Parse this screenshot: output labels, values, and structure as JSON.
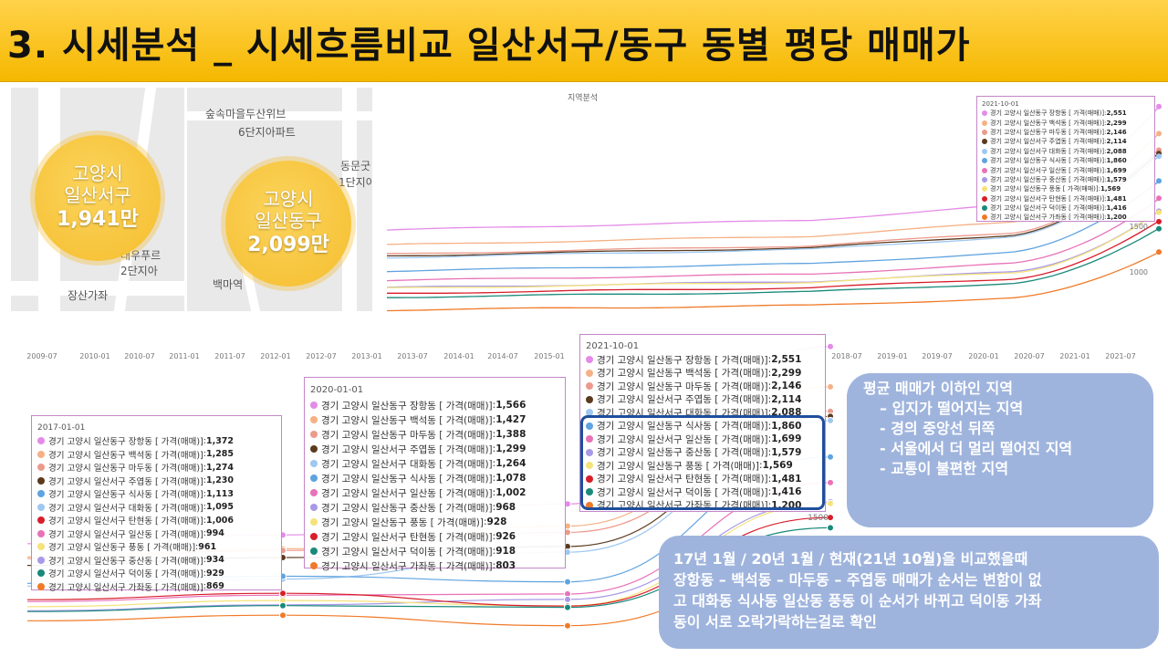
{
  "title": "3. 시세분석 _ 시세흐름비교 일산서구/동구 동별 평당 매매가",
  "maps": {
    "seo": {
      "name_line1": "고양시",
      "name_line2": "일산서구",
      "price": "1,941만",
      "labels": [
        "대우푸르",
        "2단지아",
        "장산가좌"
      ]
    },
    "dong": {
      "name_line1": "고양시",
      "name_line2": "일산동구",
      "price": "2,099만",
      "labels": [
        "숲속마을두산위브",
        "6단지아파트",
        "동문굿",
        "1단지아",
        "백마역"
      ]
    }
  },
  "colors": {
    "janghang": "#e48be8",
    "baekseok": "#f5b185",
    "madu": "#ec9a8c",
    "juyeop": "#5b3a1e",
    "daehwa": "#9fc8f0",
    "siksa": "#5fa3e0",
    "ilsan": "#e872b8",
    "jungsan": "#a899e8",
    "pungdong": "#f5e27a",
    "tanhyeon": "#d81e2a",
    "deogi": "#1a8a7a",
    "gajwa": "#f07a28",
    "title_bar": "#f5b800",
    "note_bg": "#9fb4dd",
    "highlight": "#1f4e9c"
  },
  "chart_data": [
    {
      "id": "top_chart",
      "type": "line",
      "title": "지역분석",
      "y_tick_labels": [
        "1500",
        "1000"
      ],
      "legend_date": "2021-10-01",
      "series": [
        {
          "key": "janghang",
          "name": "경기 고양시 일산동구 장항동 [ 가격(매매)]",
          "value": 2551
        },
        {
          "key": "baekseok",
          "name": "경기 고양시 일산동구 백석동 [ 가격(매매)]",
          "value": 2299
        },
        {
          "key": "madu",
          "name": "경기 고양시 일산동구 마두동 [ 가격(매매)]",
          "value": 2146
        },
        {
          "key": "juyeop",
          "name": "경기 고양시 일산서구 주엽동 [ 가격(매매)]",
          "value": 2114
        },
        {
          "key": "daehwa",
          "name": "경기 고양시 일산서구 대화동 [ 가격(매매)]",
          "value": 2088
        },
        {
          "key": "siksa",
          "name": "경기 고양시 일산동구 식사동 [ 가격(매매)]",
          "value": 1860
        },
        {
          "key": "ilsan",
          "name": "경기 고양시 일산서구 일산동 [ 가격(매매)]",
          "value": 1699
        },
        {
          "key": "jungsan",
          "name": "경기 고양시 일산동구 중산동 [ 가격(매매)]",
          "value": 1579
        },
        {
          "key": "pungdong",
          "name": "경기 고양시 일산동구 풍동 [ 가격(매매)]",
          "value": 1569
        },
        {
          "key": "tanhyeon",
          "name": "경기 고양시 일산서구 탄현동 [ 가격(매매)]",
          "value": 1481
        },
        {
          "key": "deogi",
          "name": "경기 고양시 일산서구 덕이동 [ 가격(매매)]",
          "value": 1416
        },
        {
          "key": "gajwa",
          "name": "경기 고양시 일산서구 가좌동 [ 가격(매매)]",
          "value": 1200
        }
      ]
    },
    {
      "id": "bottom_chart",
      "type": "line",
      "x_tick_labels": [
        "2009-07",
        "2010-01",
        "2010-07",
        "2011-01",
        "2011-07",
        "2012-01",
        "2012-07",
        "2013-01",
        "2013-07",
        "2014-01",
        "2014-07",
        "2015-01",
        "2018-07",
        "2019-01",
        "2019-07",
        "2020-01",
        "2020-07",
        "2021-01",
        "2021-07"
      ],
      "y_tick_labels": [
        "1500"
      ],
      "snapshots": [
        {
          "date": "2017-01-01",
          "series": [
            {
              "key": "janghang",
              "name": "경기 고양시 일산동구 장항동 [ 가격(매매)]",
              "value": 1372
            },
            {
              "key": "baekseok",
              "name": "경기 고양시 일산동구 백석동 [ 가격(매매)]",
              "value": 1285
            },
            {
              "key": "madu",
              "name": "경기 고양시 일산동구 마두동 [ 가격(매매)]",
              "value": 1274
            },
            {
              "key": "juyeop",
              "name": "경기 고양시 일산서구 주엽동 [ 가격(매매)]",
              "value": 1230
            },
            {
              "key": "siksa",
              "name": "경기 고양시 일산동구 식사동 [ 가격(매매)]",
              "value": 1113
            },
            {
              "key": "daehwa",
              "name": "경기 고양시 일산서구 대화동 [ 가격(매매)]",
              "value": 1095
            },
            {
              "key": "tanhyeon",
              "name": "경기 고양시 일산서구 탄현동 [ 가격(매매)]",
              "value": 1006
            },
            {
              "key": "ilsan",
              "name": "경기 고양시 일산서구 일산동 [ 가격(매매)]",
              "value": 994
            },
            {
              "key": "pungdong",
              "name": "경기 고양시 일산동구 풍동 [ 가격(매매)]",
              "value": 961
            },
            {
              "key": "jungsan",
              "name": "경기 고양시 일산동구 중산동 [ 가격(매매)]",
              "value": 934
            },
            {
              "key": "deogi",
              "name": "경기 고양시 일산서구 덕이동 [ 가격(매매)]",
              "value": 929
            },
            {
              "key": "gajwa",
              "name": "경기 고양시 일산서구 가좌동 [ 가격(매매)]",
              "value": 869
            }
          ]
        },
        {
          "date": "2020-01-01",
          "series": [
            {
              "key": "janghang",
              "name": "경기 고양시 일산동구 장항동 [ 가격(매매)]",
              "value": 1566
            },
            {
              "key": "baekseok",
              "name": "경기 고양시 일산동구 백석동 [ 가격(매매)]",
              "value": 1427
            },
            {
              "key": "madu",
              "name": "경기 고양시 일산동구 마두동 [ 가격(매매)]",
              "value": 1388
            },
            {
              "key": "juyeop",
              "name": "경기 고양시 일산서구 주엽동 [ 가격(매매)]",
              "value": 1299
            },
            {
              "key": "daehwa",
              "name": "경기 고양시 일산서구 대화동 [ 가격(매매)]",
              "value": 1264
            },
            {
              "key": "siksa",
              "name": "경기 고양시 일산동구 식사동 [ 가격(매매)]",
              "value": 1078
            },
            {
              "key": "ilsan",
              "name": "경기 고양시 일산서구 일산동 [ 가격(매매)]",
              "value": 1002
            },
            {
              "key": "jungsan",
              "name": "경기 고양시 일산동구 중산동 [ 가격(매매)]",
              "value": 968
            },
            {
              "key": "pungdong",
              "name": "경기 고양시 일산동구 풍동 [ 가격(매매)]",
              "value": 928
            },
            {
              "key": "tanhyeon",
              "name": "경기 고양시 일산서구 탄현동 [ 가격(매매)]",
              "value": 926
            },
            {
              "key": "deogi",
              "name": "경기 고양시 일산서구 덕이동 [ 가격(매매)]",
              "value": 918
            },
            {
              "key": "gajwa",
              "name": "경기 고양시 일산서구 가좌동 [ 가격(매매)]",
              "value": 803
            }
          ]
        },
        {
          "date": "2021-10-01",
          "series": [
            {
              "key": "janghang",
              "name": "경기 고양시 일산동구 장항동 [ 가격(매매)]",
              "value": 2551
            },
            {
              "key": "baekseok",
              "name": "경기 고양시 일산동구 백석동 [ 가격(매매)]",
              "value": 2299
            },
            {
              "key": "madu",
              "name": "경기 고양시 일산동구 마두동 [ 가격(매매)]",
              "value": 2146
            },
            {
              "key": "juyeop",
              "name": "경기 고양시 일산서구 주엽동 [ 가격(매매)]",
              "value": 2114
            },
            {
              "key": "daehwa",
              "name": "경기 고양시 일산서구 대화동 [ 가격(매매)]",
              "value": 2088
            },
            {
              "key": "siksa",
              "name": "경기 고양시 일산동구 식사동 [ 가격(매매)]",
              "value": 1860
            },
            {
              "key": "ilsan",
              "name": "경기 고양시 일산서구 일산동 [ 가격(매매)]",
              "value": 1699
            },
            {
              "key": "jungsan",
              "name": "경기 고양시 일산동구 중산동 [ 가격(매매)]",
              "value": 1579
            },
            {
              "key": "pungdong",
              "name": "경기 고양시 일산동구 풍동 [ 가격(매매)]",
              "value": 1569
            },
            {
              "key": "tanhyeon",
              "name": "경기 고양시 일산서구 탄현동 [ 가격(매매)]",
              "value": 1481
            },
            {
              "key": "deogi",
              "name": "경기 고양시 일산서구 덕이동 [ 가격(매매)]",
              "value": 1416
            },
            {
              "key": "gajwa",
              "name": "경기 고양시 일산서구 가좌동 [ 가격(매매)]",
              "value": 1200
            }
          ]
        }
      ]
    }
  ],
  "note_top": {
    "heading": "평균 매매가 이하인 지역",
    "items": [
      "– 입지가 떨어지는 지역",
      "- 경의 중앙선 뒤쪽",
      "- 서울에서 더 멀리 떨어진 지역",
      "- 교통이 불편한 지역"
    ]
  },
  "note_bottom": {
    "lines": [
      "17년 1월 / 20년 1월 / 현재(21년 10월)을 비교했을때",
      "장항동 – 백석동 – 마두동 – 주엽동 매매가 순서는 변함이 없",
      "고 대화동 식사동 일산동 풍동 이 순서가 바뀌고 덕이동 가좌",
      "동이 서로 오락가락하는걸로 확인"
    ]
  }
}
